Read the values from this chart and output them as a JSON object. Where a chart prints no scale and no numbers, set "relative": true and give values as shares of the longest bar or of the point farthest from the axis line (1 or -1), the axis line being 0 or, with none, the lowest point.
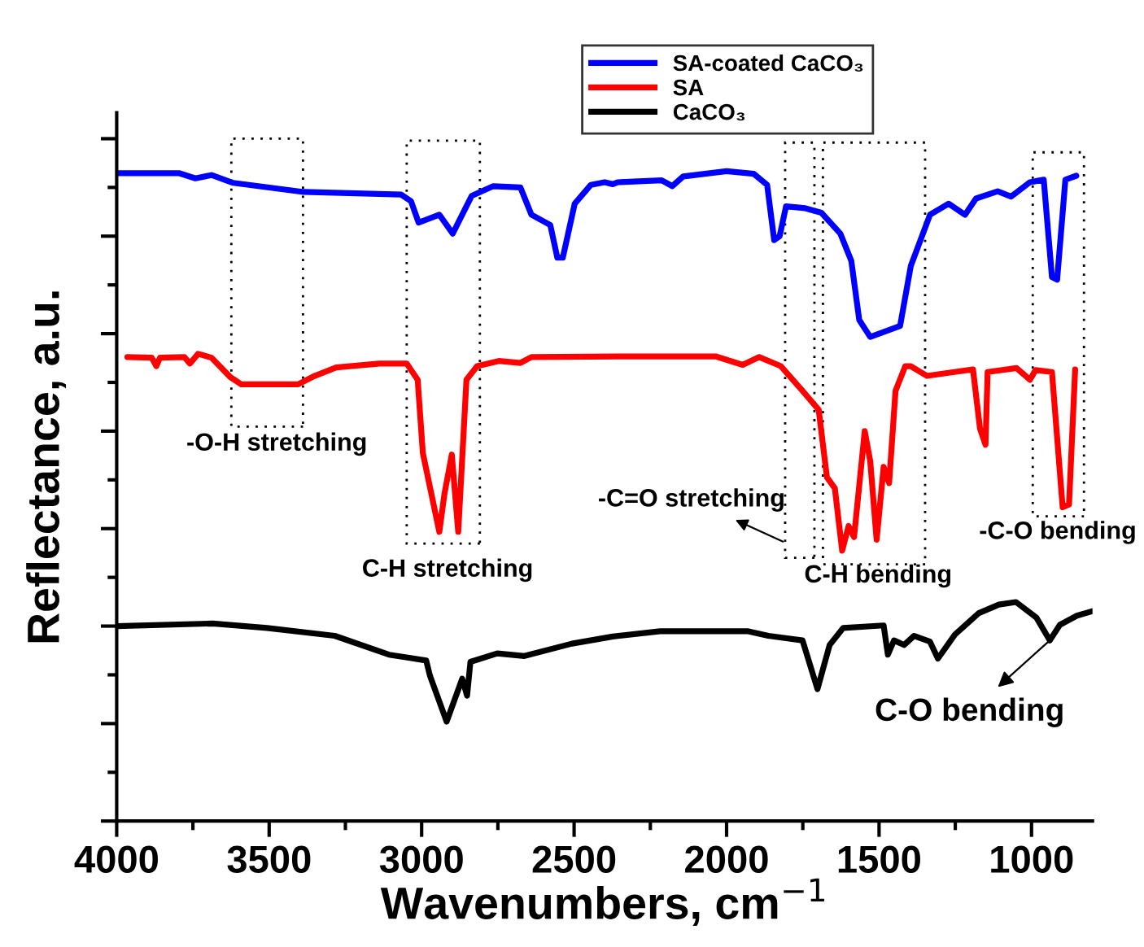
{
  "chart_data": {
    "type": "line",
    "relative": true,
    "xlabel": "Wavenumbers, cm$^{−1}$",
    "ylabel": "Reflectance, a.u.",
    "xlim": [
      4000,
      800
    ],
    "xticks": [
      4000,
      {
        "value": 3750,
        "label": null
      },
      3500,
      {
        "value": 3250,
        "label": null
      },
      3000,
      {
        "value": 2750,
        "label": null
      },
      2500,
      {
        "value": 2250,
        "label": null
      },
      2000,
      {
        "value": 1750,
        "label": null
      },
      1500,
      {
        "value": 1250,
        "label": null
      },
      1000
    ],
    "tick_labels": "x",
    "grid": false,
    "legend": "top right",
    "line_style": "solid",
    "marker": "none",
    "series": [
      {
        "name": "SA-coated CaCO₃",
        "color": "#0000ff",
        "x": [
          4000,
          3796,
          3742,
          3689,
          3618,
          3387,
          3067,
          3035,
          3010,
          2942,
          2898,
          2836,
          2765,
          2676,
          2640,
          2578,
          2555,
          2537,
          2498,
          2445,
          2400,
          2373,
          2356,
          2213,
          2178,
          2142,
          2000,
          1911,
          1867,
          1844,
          1826,
          1805,
          1742,
          1689,
          1627,
          1591,
          1565,
          1529,
          1431,
          1396,
          1333,
          1272,
          1218,
          1182,
          1111,
          1067,
          1005,
          960,
          933,
          916,
          889,
          853
        ],
        "values": [
          0.997,
          0.997,
          0.989,
          0.994,
          0.982,
          0.968,
          0.964,
          0.954,
          0.921,
          0.933,
          0.904,
          0.962,
          0.977,
          0.975,
          0.933,
          0.917,
          0.867,
          0.867,
          0.95,
          0.979,
          0.983,
          0.98,
          0.983,
          0.986,
          0.977,
          0.992,
          1.0,
          0.996,
          0.979,
          0.894,
          0.9,
          0.946,
          0.943,
          0.936,
          0.904,
          0.862,
          0.771,
          0.745,
          0.762,
          0.854,
          0.933,
          0.95,
          0.933,
          0.958,
          0.969,
          0.961,
          0.983,
          0.987,
          0.837,
          0.833,
          0.987,
          0.993
        ]
      },
      {
        "name": "SA",
        "color": "#ff0000",
        "x": [
          3965,
          3885,
          3870,
          3858,
          3778,
          3760,
          3733,
          3689,
          3627,
          3591,
          3405,
          3351,
          3280,
          3138,
          3049,
          3013,
          2996,
          2942,
          2925,
          2901,
          2880,
          2853,
          2818,
          2747,
          2676,
          2640,
          2356,
          2036,
          1947,
          1893,
          1822,
          1751,
          1698,
          1671,
          1645,
          1621,
          1600,
          1582,
          1547,
          1529,
          1508,
          1485,
          1467,
          1446,
          1414,
          1396,
          1343,
          1192,
          1169,
          1151,
          1144,
          1049,
          1005,
          987,
          933,
          898,
          877,
          857
        ],
        "values": [
          0.714,
          0.713,
          0.7,
          0.713,
          0.714,
          0.704,
          0.719,
          0.713,
          0.683,
          0.672,
          0.672,
          0.685,
          0.698,
          0.704,
          0.704,
          0.679,
          0.566,
          0.445,
          0.504,
          0.564,
          0.445,
          0.679,
          0.7,
          0.708,
          0.705,
          0.714,
          0.715,
          0.715,
          0.702,
          0.714,
          0.7,
          0.662,
          0.633,
          0.529,
          0.512,
          0.416,
          0.454,
          0.437,
          0.6,
          0.554,
          0.433,
          0.545,
          0.52,
          0.662,
          0.7,
          0.7,
          0.685,
          0.695,
          0.604,
          0.579,
          0.691,
          0.697,
          0.679,
          0.694,
          0.691,
          0.483,
          0.487,
          0.695
        ]
      },
      {
        "name": "CaCO₃",
        "color": "#000000",
        "x": [
          4000,
          3685,
          3507,
          3285,
          3107,
          2985,
          2973,
          2918,
          2867,
          2851,
          2840,
          2752,
          2663,
          2507,
          2373,
          2218,
          1929,
          1863,
          1751,
          1702,
          1662,
          1618,
          1485,
          1471,
          1451,
          1418,
          1385,
          1333,
          1307,
          1251,
          1173,
          1107,
          1051,
          984,
          940,
          907,
          851,
          800
        ],
        "values": [
          0.3,
          0.304,
          0.297,
          0.285,
          0.256,
          0.247,
          0.224,
          0.153,
          0.219,
          0.193,
          0.245,
          0.258,
          0.254,
          0.273,
          0.284,
          0.292,
          0.292,
          0.285,
          0.278,
          0.203,
          0.271,
          0.297,
          0.301,
          0.256,
          0.278,
          0.271,
          0.285,
          0.276,
          0.25,
          0.287,
          0.32,
          0.333,
          0.337,
          0.313,
          0.278,
          0.302,
          0.316,
          0.323
        ]
      }
    ],
    "annotations": [
      "-O-H stretching",
      "C-H stretching",
      "-C=O stretching",
      "C-H bending",
      "-C-O bending",
      "C-O bending"
    ]
  }
}
